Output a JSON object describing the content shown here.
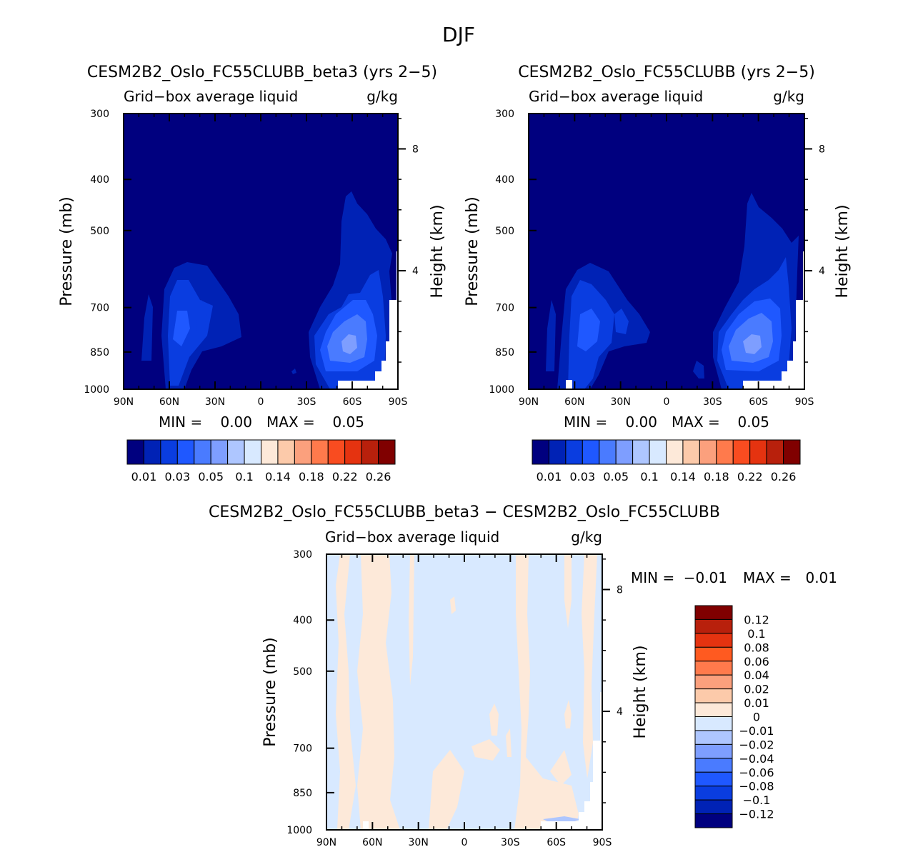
{
  "figure": {
    "title": "DJF",
    "season": "DJF"
  },
  "colors": {
    "main": [
      "#00007f",
      "#0022b5",
      "#0a3de0",
      "#1f58ff",
      "#4a7bff",
      "#7e9eff",
      "#aec6ff",
      "#d8e9ff",
      "#fde9d9",
      "#fccaaa",
      "#fba07d",
      "#ff7a4c",
      "#f94c20",
      "#e53310",
      "#b8200c",
      "#800000"
    ],
    "diff": [
      "#800000",
      "#b8200c",
      "#e53310",
      "#ff5a20",
      "#ff7a4c",
      "#fba07d",
      "#fccaaa",
      "#fde9d9",
      "#d8e9ff",
      "#aec6ff",
      "#7e9eff",
      "#4a7bff",
      "#1f58ff",
      "#0a3de0",
      "#0022b5",
      "#00007f"
    ]
  },
  "chart_data": [
    {
      "type": "heatmap",
      "name": "beta3",
      "title": "CESM2B2_Oslo_FC55CLUBB_beta3 (yrs 2−5)",
      "subtitle": "Grid−box average liquid",
      "units": "g/kg",
      "ylabel": "Pressure (mb)",
      "y2label": "Height (km)",
      "xticks": [
        "90N",
        "60N",
        "30N",
        "0",
        "30S",
        "60S",
        "90S"
      ],
      "xtick_values": [
        90,
        60,
        30,
        0,
        -30,
        -60,
        -90
      ],
      "yticks": [
        "300",
        "400",
        "500",
        "700",
        "850",
        "1000"
      ],
      "ytick_values": [
        300,
        400,
        500,
        700,
        850,
        1000
      ],
      "y2ticks": [
        "8",
        "4"
      ],
      "y2tick_values": [
        8,
        4
      ],
      "min_label": "MIN =",
      "min_value": "0.00",
      "max_label": "MAX =",
      "max_value": "0.05",
      "colorbar_labels": [
        "0.01",
        "0.03",
        "0.05",
        "0.1",
        "0.14",
        "0.18",
        "0.22",
        "0.26"
      ],
      "contour_levels": [
        0.005,
        0.01,
        0.02,
        0.03,
        0.04,
        0.05,
        0.07,
        0.1,
        0.12,
        0.14,
        0.16,
        0.18,
        0.2,
        0.22,
        0.24,
        0.26,
        0.28
      ]
    },
    {
      "type": "heatmap",
      "name": "control",
      "title": "CESM2B2_Oslo_FC55CLUBB (yrs 2−5)",
      "subtitle": "Grid−box average liquid",
      "units": "g/kg",
      "ylabel": "Pressure (mb)",
      "y2label": "Height (km)",
      "xticks": [
        "90N",
        "60N",
        "30N",
        "0",
        "30S",
        "60S",
        "90S"
      ],
      "xtick_values": [
        90,
        60,
        30,
        0,
        -30,
        -60,
        -90
      ],
      "yticks": [
        "300",
        "400",
        "500",
        "700",
        "850",
        "1000"
      ],
      "ytick_values": [
        300,
        400,
        500,
        700,
        850,
        1000
      ],
      "y2ticks": [
        "8",
        "4"
      ],
      "y2tick_values": [
        8,
        4
      ],
      "min_label": "MIN =",
      "min_value": "0.00",
      "max_label": "MAX =",
      "max_value": "0.05",
      "colorbar_labels": [
        "0.01",
        "0.03",
        "0.05",
        "0.1",
        "0.14",
        "0.18",
        "0.22",
        "0.26"
      ],
      "contour_levels": [
        0.005,
        0.01,
        0.02,
        0.03,
        0.04,
        0.05,
        0.07,
        0.1,
        0.12,
        0.14,
        0.16,
        0.18,
        0.2,
        0.22,
        0.24,
        0.26,
        0.28
      ]
    },
    {
      "type": "heatmap",
      "name": "difference",
      "title": "CESM2B2_Oslo_FC55CLUBB_beta3 − CESM2B2_Oslo_FC55CLUBB",
      "subtitle": "Grid−box average liquid",
      "units": "g/kg",
      "ylabel": "Pressure (mb)",
      "y2label": "Height (km)",
      "xticks": [
        "90N",
        "60N",
        "30N",
        "0",
        "30S",
        "60S",
        "90S"
      ],
      "xtick_values": [
        90,
        60,
        30,
        0,
        -30,
        -60,
        -90
      ],
      "yticks": [
        "300",
        "400",
        "500",
        "700",
        "850",
        "1000"
      ],
      "ytick_values": [
        300,
        400,
        500,
        700,
        850,
        1000
      ],
      "y2ticks": [
        "8",
        "4"
      ],
      "y2tick_values": [
        8,
        4
      ],
      "min_label": "MIN =",
      "min_value": "−0.01",
      "max_label": "MAX =",
      "max_value": "0.01",
      "colorbar_labels": [
        "0.12",
        "0.1",
        "0.08",
        "0.06",
        "0.04",
        "0.02",
        "0.01",
        "0",
        "−0.01",
        "−0.02",
        "−0.04",
        "−0.06",
        "−0.08",
        "−0.1",
        "−0.12"
      ],
      "contour_levels": [
        0.12,
        0.1,
        0.08,
        0.06,
        0.04,
        0.02,
        0.01,
        0,
        -0.01,
        -0.02,
        -0.04,
        -0.06,
        -0.08,
        -0.1,
        -0.12
      ]
    }
  ]
}
